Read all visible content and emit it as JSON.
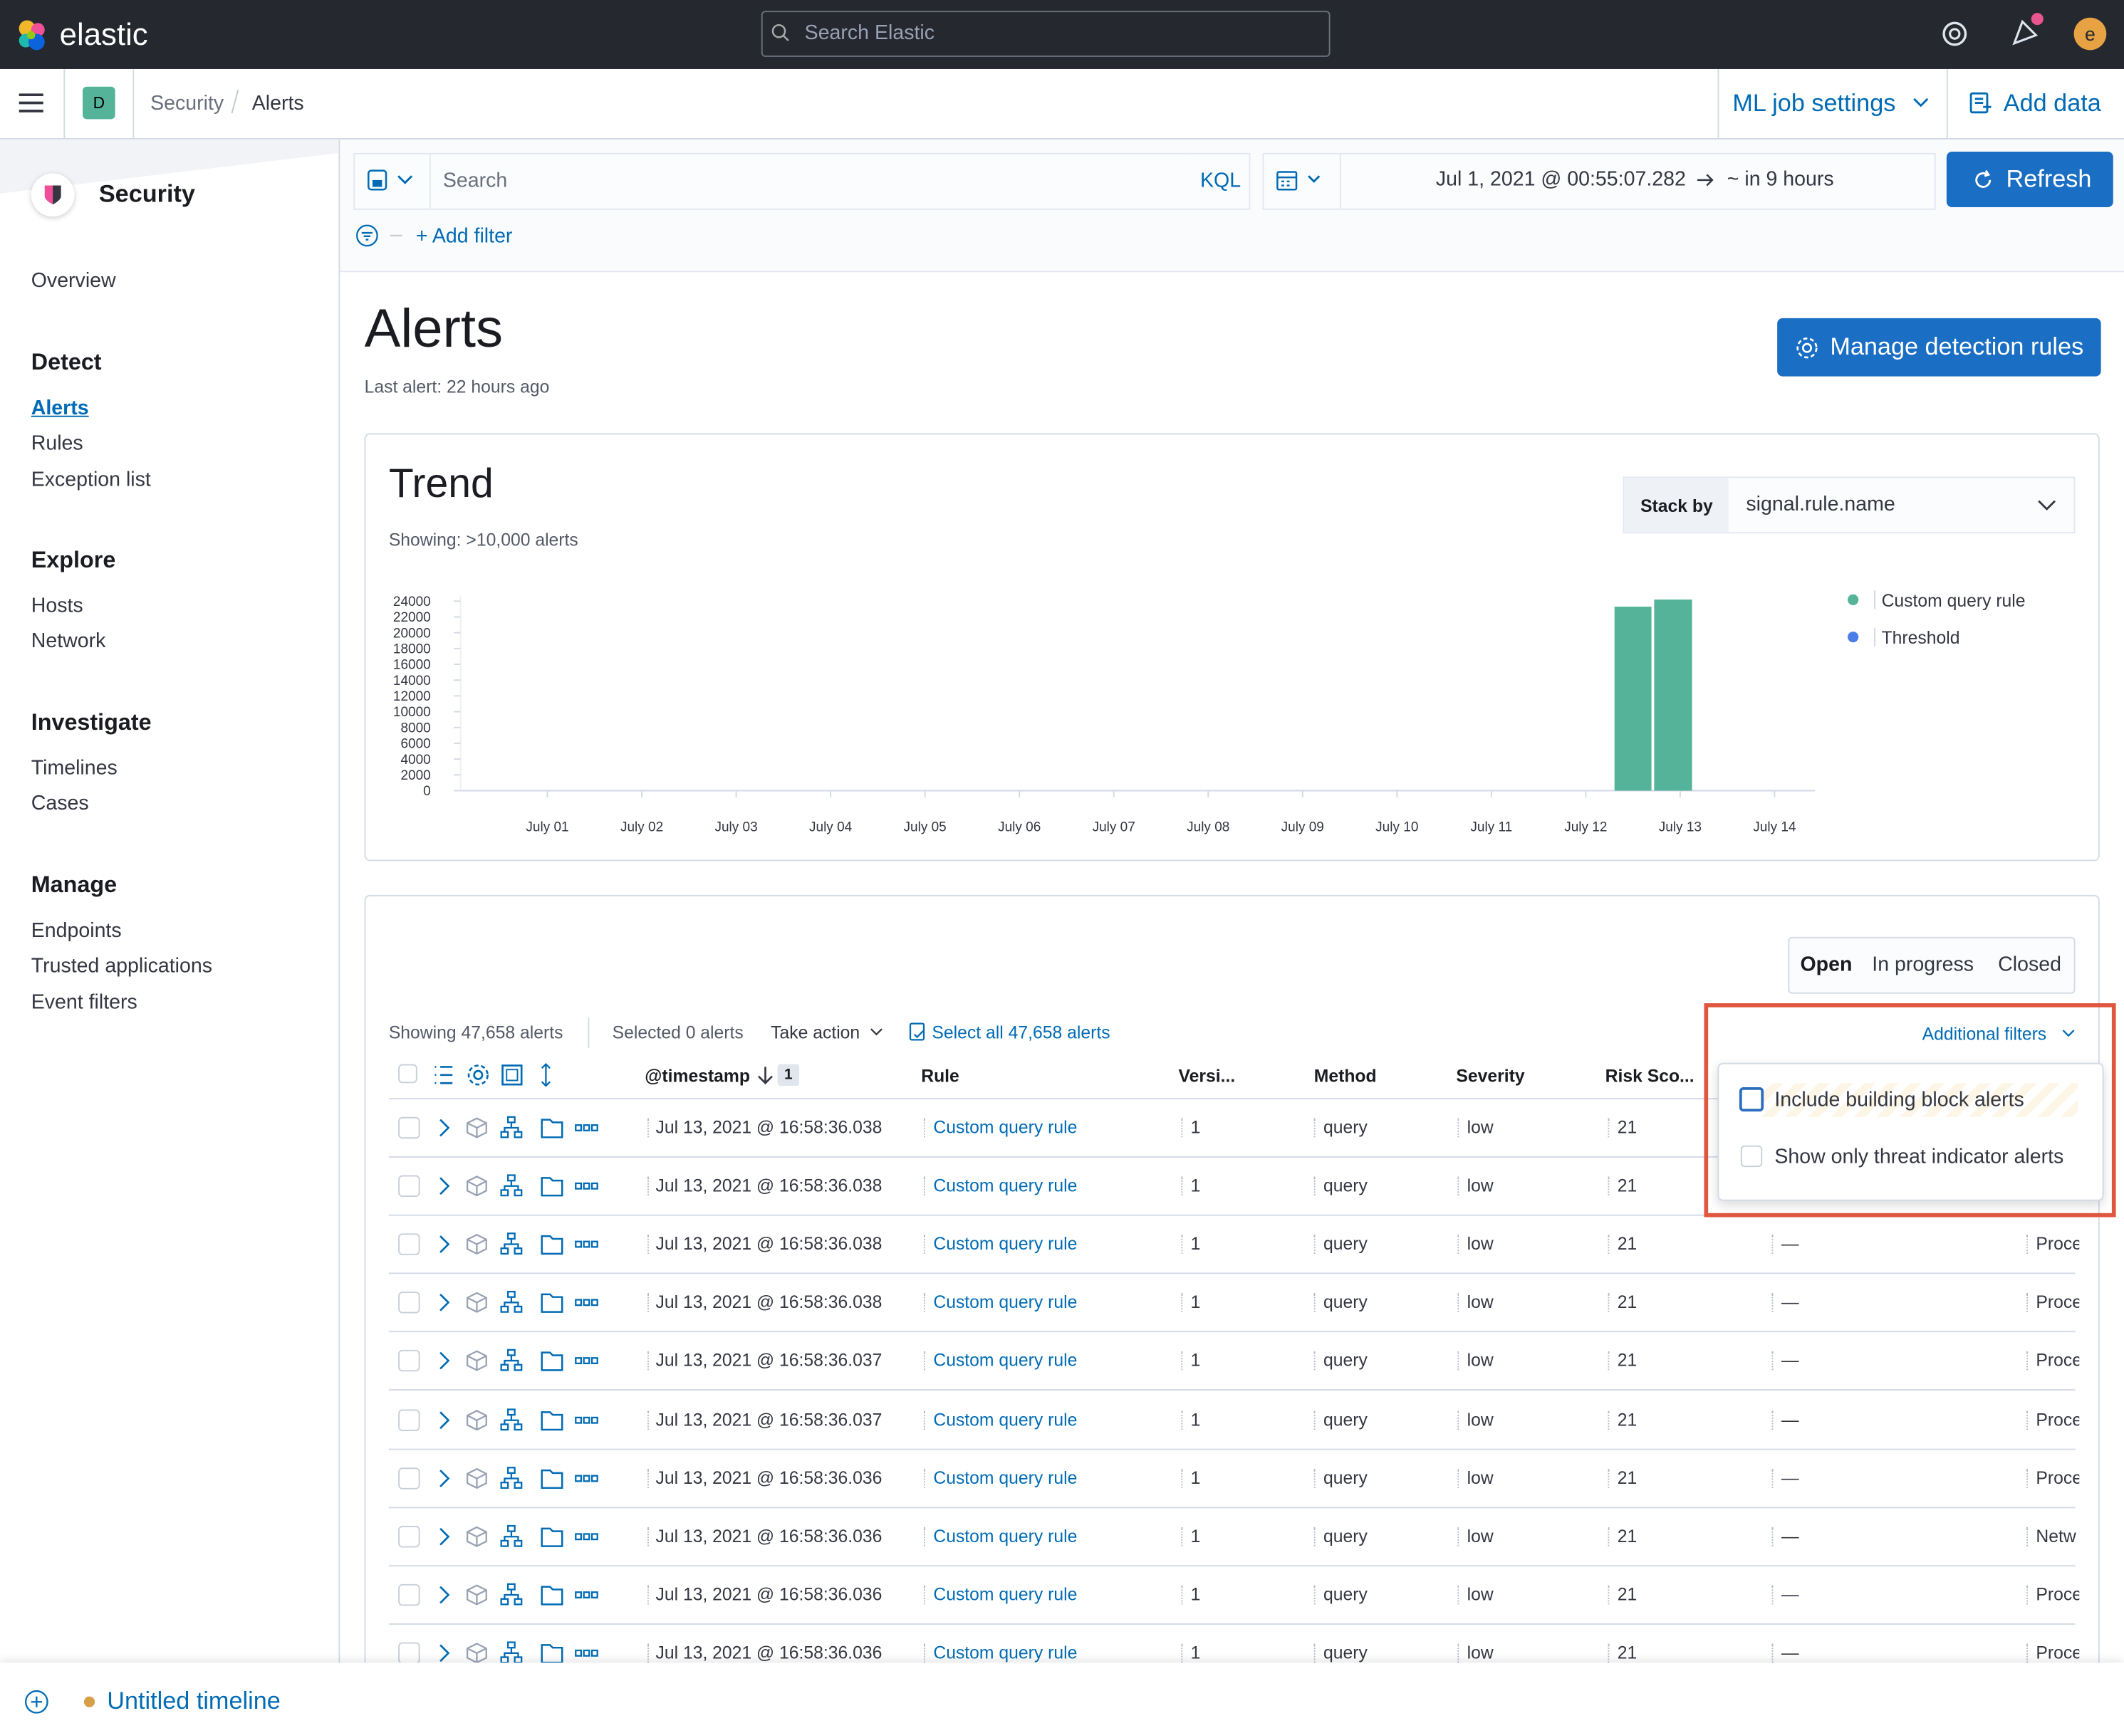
{
  "header": {
    "logo": "elastic",
    "search_placeholder": "Search Elastic",
    "avatar": "e"
  },
  "nav": {
    "space": "D",
    "breadcrumbs": [
      "Security",
      "Alerts"
    ],
    "ml_job_settings": "ML job settings",
    "add_data": "Add data"
  },
  "sidebar": {
    "title": "Security",
    "overview": "Overview",
    "groups": [
      {
        "title": "Detect",
        "items": [
          "Alerts",
          "Rules",
          "Exception list"
        ]
      },
      {
        "title": "Explore",
        "items": [
          "Hosts",
          "Network"
        ]
      },
      {
        "title": "Investigate",
        "items": [
          "Timelines",
          "Cases"
        ]
      },
      {
        "title": "Manage",
        "items": [
          "Endpoints",
          "Trusted applications",
          "Event filters"
        ]
      }
    ]
  },
  "query_bar": {
    "placeholder": "Search",
    "language": "KQL",
    "start": "Jul 1, 2021 @ 00:55:07.282",
    "end": "~ in 9 hours",
    "refresh": "Refresh",
    "add_filter": "+ Add filter"
  },
  "page": {
    "title": "Alerts",
    "subtitle": "Last alert: 22 hours ago",
    "manage_button": "Manage detection rules"
  },
  "trend": {
    "title": "Trend",
    "subtitle": "Showing: >10,000 alerts",
    "stack_by_label": "Stack by",
    "stack_by_value": "signal.rule.name",
    "chart": {
      "type": "histogram",
      "bins": [
        12.29,
        12.71,
        13.14
      ],
      "series": [
        {
          "name": "Custom query rule",
          "color": "#54b399",
          "values": [
            23300,
            24200
          ]
        },
        {
          "name": "Threshold",
          "color": "#4a7de8",
          "values": [
            0,
            0
          ]
        }
      ],
      "ylim": [
        0,
        24000
      ],
      "yticks": [
        0,
        2000,
        4000,
        6000,
        8000,
        10000,
        12000,
        14000,
        16000,
        18000,
        20000,
        22000,
        24000
      ],
      "xlim": [
        0.08,
        14.43
      ],
      "xticks": [
        {
          "value": 1,
          "label": "July 01"
        },
        {
          "value": 2,
          "label": "July 02"
        },
        {
          "value": 3,
          "label": "July 03"
        },
        {
          "value": 4,
          "label": "July 04"
        },
        {
          "value": 5,
          "label": "July 05"
        },
        {
          "value": 6,
          "label": "July 06"
        },
        {
          "value": 7,
          "label": "July 07"
        },
        {
          "value": 8,
          "label": "July 08"
        },
        {
          "value": 9,
          "label": "July 09"
        },
        {
          "value": 10,
          "label": "July 10"
        },
        {
          "value": 11,
          "label": "July 11"
        },
        {
          "value": 12,
          "label": "July 12"
        },
        {
          "value": 13,
          "label": "July 13"
        },
        {
          "value": 14,
          "label": "July 14"
        }
      ]
    }
  },
  "table": {
    "status_tabs": [
      "Open",
      "In progress",
      "Closed"
    ],
    "showing": "Showing 47,658 alerts",
    "selected": "Selected 0 alerts",
    "take_action": "Take action",
    "select_all": "Select all 47,658 alerts",
    "additional_filters": "Additional filters",
    "filter_options": [
      "Include building block alerts",
      "Show only threat indicator alerts"
    ],
    "sort_count": "1",
    "columns": [
      "@timestamp",
      "Rule",
      "Versi...",
      "Method",
      "Severity",
      "Risk Sco..."
    ],
    "rows": [
      [
        "Jul 13, 2021 @ 16:58:36.038",
        "Custom query rule",
        "1",
        "query",
        "low",
        "21",
        null,
        null
      ],
      [
        "Jul 13, 2021 @ 16:58:36.038",
        "Custom query rule",
        "1",
        "query",
        "low",
        "21",
        null,
        null
      ],
      [
        "Jul 13, 2021 @ 16:58:36.038",
        "Custom query rule",
        "1",
        "query",
        "low",
        "21",
        "—",
        "Proce"
      ],
      [
        "Jul 13, 2021 @ 16:58:36.038",
        "Custom query rule",
        "1",
        "query",
        "low",
        "21",
        "—",
        "Proce"
      ],
      [
        "Jul 13, 2021 @ 16:58:36.037",
        "Custom query rule",
        "1",
        "query",
        "low",
        "21",
        "—",
        "Proce"
      ],
      [
        "Jul 13, 2021 @ 16:58:36.037",
        "Custom query rule",
        "1",
        "query",
        "low",
        "21",
        "—",
        "Proce"
      ],
      [
        "Jul 13, 2021 @ 16:58:36.036",
        "Custom query rule",
        "1",
        "query",
        "low",
        "21",
        "—",
        "Proce"
      ],
      [
        "Jul 13, 2021 @ 16:58:36.036",
        "Custom query rule",
        "1",
        "query",
        "low",
        "21",
        "—",
        "Netw"
      ],
      [
        "Jul 13, 2021 @ 16:58:36.036",
        "Custom query rule",
        "1",
        "query",
        "low",
        "21",
        "—",
        "Proce"
      ],
      [
        "Jul 13, 2021 @ 16:58:36.036",
        "Custom query rule",
        "1",
        "query",
        "low",
        "21",
        "—",
        "Proce"
      ]
    ]
  },
  "footer": {
    "timeline": "Untitled timeline"
  }
}
